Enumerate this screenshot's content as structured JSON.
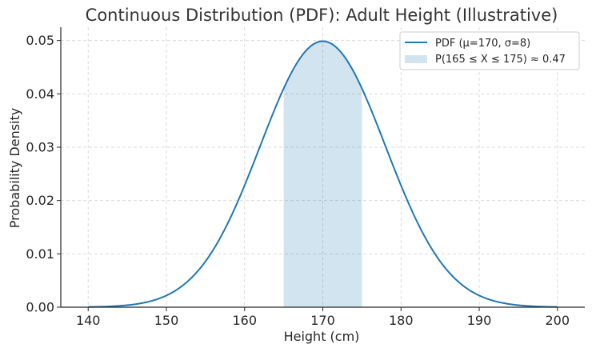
{
  "chart_data": {
    "type": "line",
    "title": "Continuous Distribution (PDF): Adult Height (Illustrative)",
    "xlabel": "Height (cm)",
    "ylabel": "Probability Density",
    "xlim": [
      140,
      200
    ],
    "ylim": [
      0,
      0.05
    ],
    "xticks": [
      140,
      150,
      160,
      170,
      180,
      190,
      200
    ],
    "yticks": [
      0.0,
      0.01,
      0.02,
      0.03,
      0.04,
      0.05
    ],
    "xtick_labels": [
      "140",
      "150",
      "160",
      "170",
      "180",
      "190",
      "200"
    ],
    "ytick_labels": [
      "0.00",
      "0.01",
      "0.02",
      "0.03",
      "0.04",
      "0.05"
    ],
    "grid": true,
    "legend_position": "top-right",
    "series": [
      {
        "name": "PDF (μ=170, σ=8)",
        "kind": "normal-pdf",
        "mu": 170,
        "sigma": 8,
        "color": "#1f77b4"
      }
    ],
    "shaded_region": {
      "name": "P(165 ≤ X ≤ 175) ≈ 0.47",
      "x_from": 165,
      "x_to": 175,
      "color": "#1f77b4",
      "opacity": 0.2
    }
  }
}
